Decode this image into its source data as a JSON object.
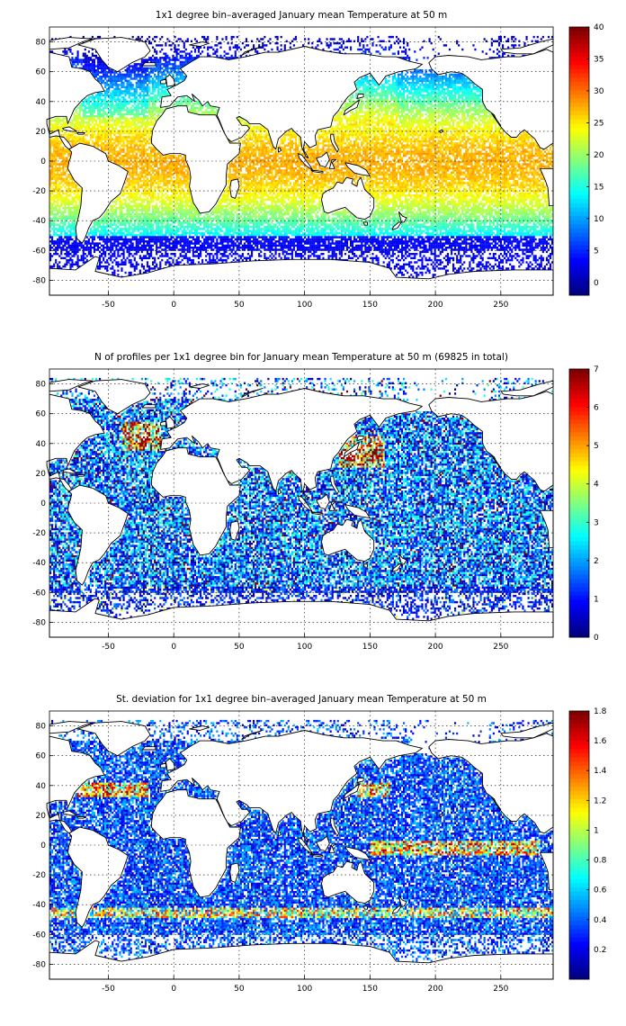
{
  "chart_data": [
    {
      "type": "heatmap",
      "title": "1x1 degree bin–averaged January mean Temperature at 50 m",
      "xlabel": "",
      "ylabel": "",
      "xlim": [
        -95,
        290
      ],
      "ylim": [
        -90,
        90
      ],
      "xticks": [
        -50,
        0,
        50,
        100,
        150,
        200,
        250
      ],
      "yticks": [
        -80,
        -60,
        -40,
        -20,
        0,
        20,
        40,
        60,
        80
      ],
      "grid": true,
      "colorbar": {
        "min": -2,
        "max": 40,
        "ticks": [
          0,
          5,
          10,
          15,
          20,
          25,
          30,
          35,
          40
        ],
        "colormap": "jet"
      },
      "field": "temperature",
      "description_values": {
        "tropical_max": 29,
        "polar_min": -1.8
      }
    },
    {
      "type": "heatmap",
      "title": "N of profiles per 1x1 degree bin for January mean Temperature at 50 m (69825 in total)",
      "xlabel": "",
      "ylabel": "",
      "xlim": [
        -95,
        290
      ],
      "ylim": [
        -90,
        90
      ],
      "xticks": [
        -50,
        0,
        50,
        100,
        150,
        200,
        250
      ],
      "yticks": [
        -80,
        -60,
        -40,
        -20,
        0,
        20,
        40,
        60,
        80
      ],
      "grid": true,
      "colorbar": {
        "min": 0,
        "max": 7,
        "ticks": [
          0,
          1,
          2,
          3,
          4,
          5,
          6,
          7
        ],
        "colormap": "jet"
      },
      "field": "count",
      "total_profiles": 69825
    },
    {
      "type": "heatmap",
      "title": "St. deviation for 1x1 degree bin–averaged January mean Temperature at 50 m",
      "xlabel": "",
      "ylabel": "",
      "xlim": [
        -95,
        290
      ],
      "ylim": [
        -90,
        90
      ],
      "xticks": [
        -50,
        0,
        50,
        100,
        150,
        200,
        250
      ],
      "yticks": [
        -80,
        -60,
        -40,
        -20,
        0,
        20,
        40,
        60,
        80
      ],
      "grid": true,
      "colorbar": {
        "min": 0,
        "max": 1.8,
        "ticks": [
          0.2,
          0.4,
          0.6,
          0.8,
          1,
          1.2,
          1.4,
          1.6,
          1.8
        ],
        "colormap": "jet"
      },
      "field": "stdev"
    }
  ]
}
